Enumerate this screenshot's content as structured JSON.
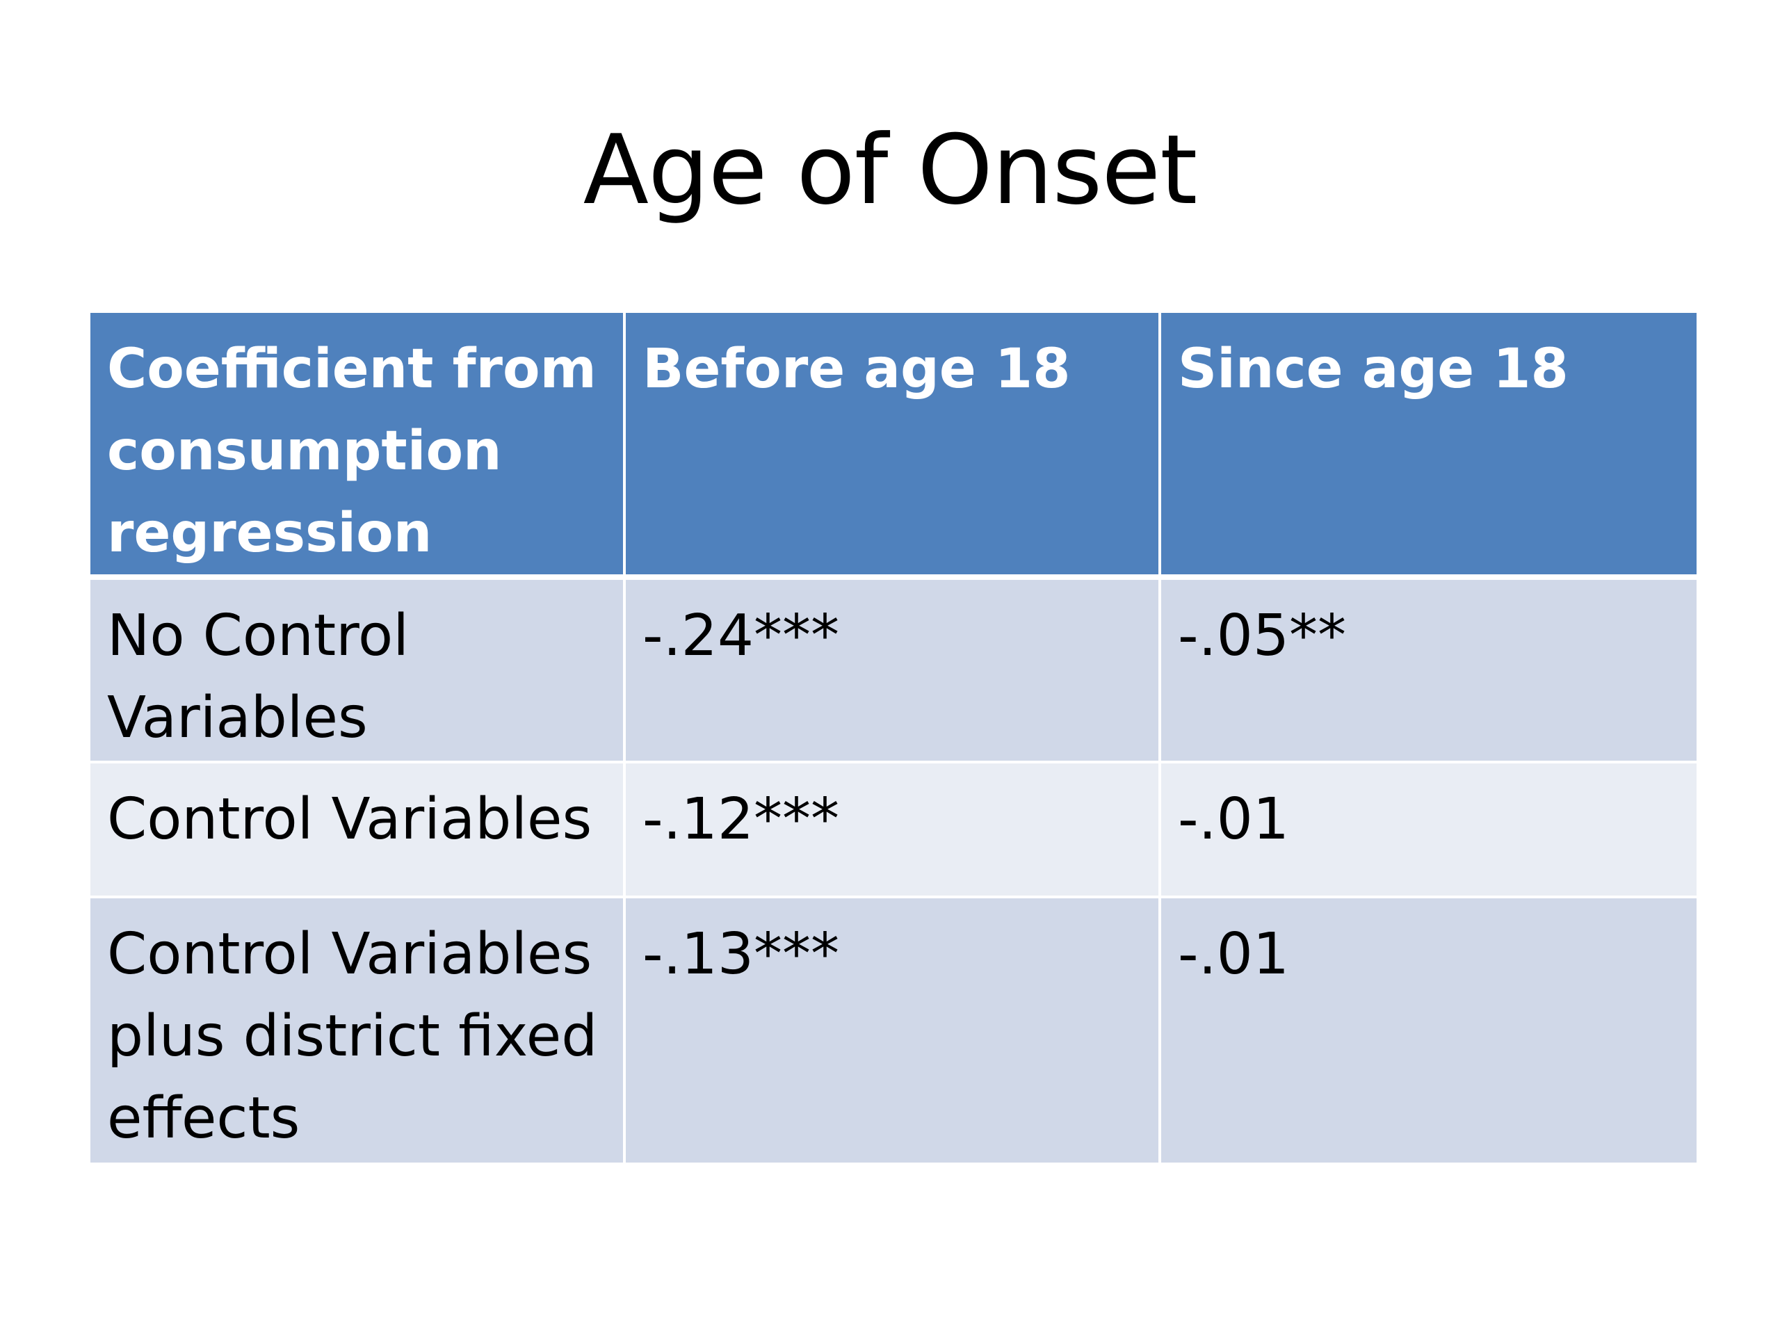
{
  "slide": {
    "title": "Age of Onset"
  },
  "table": {
    "headers": [
      "Coefficient from consumption regression",
      "Before age 18",
      "Since age 18"
    ],
    "rows": [
      [
        "No Control Variables",
        "-.24***",
        "-.05**"
      ],
      [
        "Control Variables",
        "-.12***",
        "-.01"
      ],
      [
        "Control Variables plus district fixed effects",
        "-.13***",
        "-.01"
      ]
    ]
  },
  "colors": {
    "header_background": "#4f81bd",
    "header_text": "#ffffff",
    "row_band_dark": "#d0d8e8",
    "row_band_light": "#e9edf4"
  }
}
